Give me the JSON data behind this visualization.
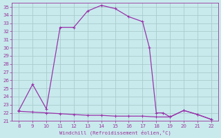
{
  "x": [
    8,
    9,
    10,
    11,
    12,
    13,
    14,
    15,
    16,
    17,
    17.5,
    18,
    18.5,
    19,
    20,
    21,
    22
  ],
  "y_upper": [
    22.3,
    25.5,
    22.5,
    32.5,
    32.5,
    34.5,
    35.2,
    34.8,
    33.8,
    33.2,
    30,
    22,
    22,
    21.5,
    22.3,
    21.8,
    21.2
  ],
  "x_lower": [
    8,
    9,
    10,
    11,
    12,
    13,
    14,
    15,
    16,
    17,
    18,
    19,
    20,
    21,
    22
  ],
  "y_lower": [
    22.2,
    22.1,
    22.0,
    21.9,
    21.8,
    21.7,
    21.7,
    21.6,
    21.6,
    21.6,
    21.5,
    21.5,
    22.3,
    21.8,
    21.2
  ],
  "line_color": "#9933aa",
  "bg_color": "#c8eaed",
  "grid_color": "#aacccc",
  "xlabel": "Windchill (Refroidissement éolien,°C)",
  "xlabel_color": "#993399",
  "ylim": [
    21.0,
    35.5
  ],
  "xlim": [
    7.5,
    22.5
  ],
  "yticks": [
    21,
    22,
    23,
    24,
    25,
    26,
    27,
    28,
    29,
    30,
    31,
    32,
    33,
    34,
    35
  ],
  "xticks": [
    8,
    9,
    10,
    11,
    12,
    13,
    14,
    15,
    16,
    17,
    18,
    19,
    20,
    21,
    22
  ],
  "tick_color": "#993399",
  "marker_color": "#993399",
  "figsize": [
    3.2,
    2.0
  ],
  "dpi": 100
}
